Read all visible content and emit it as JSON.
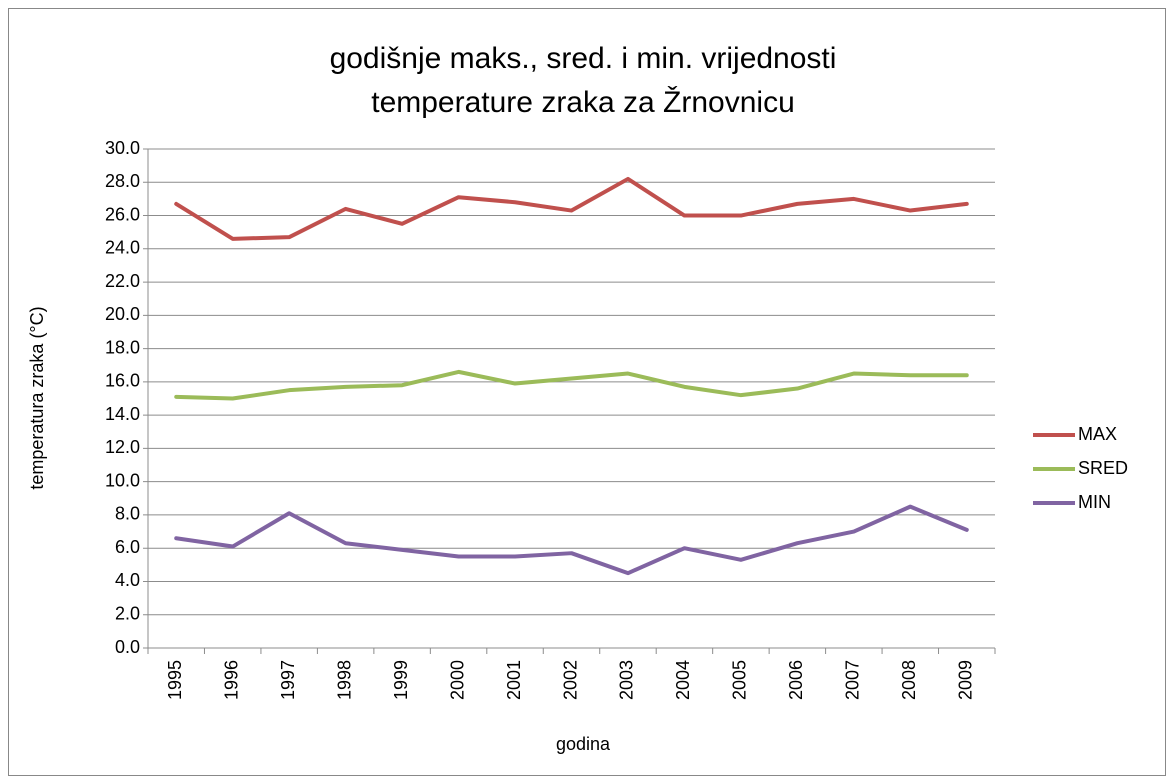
{
  "chart_data": {
    "type": "line",
    "title": [
      "godišnje maks., sred. i min. vrijednosti",
      "temperature zraka za Žrnovnicu"
    ],
    "x_label": "godina",
    "y_label": "temperatura zraka (°C)",
    "categories": [
      "1995",
      "1996",
      "1997",
      "1998",
      "1999",
      "2000",
      "2001",
      "2002",
      "2003",
      "2004",
      "2005",
      "2006",
      "2007",
      "2008",
      "2009"
    ],
    "series": [
      {
        "name": "MAX",
        "color": "#c0504d",
        "values": [
          26.7,
          24.6,
          24.7,
          26.4,
          25.5,
          27.1,
          26.8,
          26.3,
          28.2,
          26.0,
          26.0,
          26.7,
          27.0,
          26.3,
          26.7
        ]
      },
      {
        "name": "SRED",
        "color": "#9bbb59",
        "values": [
          15.1,
          15.0,
          15.5,
          15.7,
          15.8,
          16.6,
          15.9,
          16.2,
          16.5,
          15.7,
          15.2,
          15.6,
          16.5,
          16.4,
          16.4
        ]
      },
      {
        "name": "MIN",
        "color": "#8064a2",
        "values": [
          6.6,
          6.1,
          8.1,
          6.3,
          5.9,
          5.5,
          5.5,
          5.7,
          4.5,
          6.0,
          5.3,
          6.3,
          7.0,
          8.5,
          7.1
        ]
      }
    ],
    "ylim": [
      0,
      30
    ],
    "yticks": [
      {
        "value": 0,
        "label": "0.0"
      },
      {
        "value": 2,
        "label": "2.0"
      },
      {
        "value": 4,
        "label": "4.0"
      },
      {
        "value": 6,
        "label": "6.0"
      },
      {
        "value": 8,
        "label": "8.0"
      },
      {
        "value": 10,
        "label": "10.0"
      },
      {
        "value": 12,
        "label": "12.0"
      },
      {
        "value": 14,
        "label": "14.0"
      },
      {
        "value": 16,
        "label": "16.0"
      },
      {
        "value": 18,
        "label": "18.0"
      },
      {
        "value": 20,
        "label": "20.0"
      },
      {
        "value": 22,
        "label": "22.0"
      },
      {
        "value": 24,
        "label": "24.0"
      },
      {
        "value": 26,
        "label": "26.0"
      },
      {
        "value": 28,
        "label": "28.0"
      },
      {
        "value": 30,
        "label": "30.0"
      }
    ],
    "grid": true,
    "legend": "right"
  }
}
